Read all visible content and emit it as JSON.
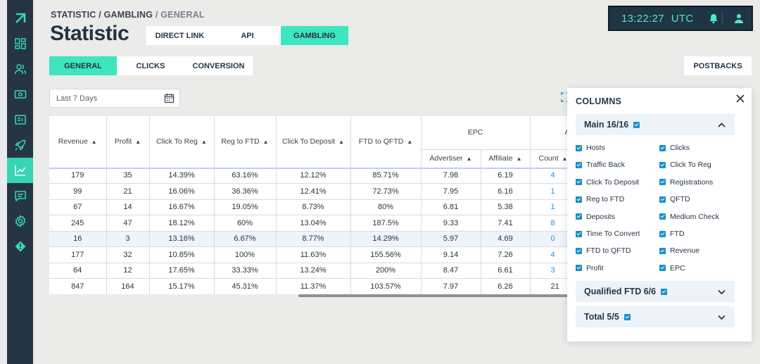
{
  "sidebar": {
    "items": [
      {
        "icon": "logo-arrow-icon",
        "active": false
      },
      {
        "icon": "dashboard-icon",
        "active": false
      },
      {
        "icon": "users-icon",
        "active": false
      },
      {
        "icon": "money-icon",
        "active": false
      },
      {
        "icon": "news-icon",
        "active": false
      },
      {
        "icon": "rocket-icon",
        "active": false
      },
      {
        "icon": "statistic-chart-icon",
        "active": true
      },
      {
        "icon": "message-icon",
        "active": false
      },
      {
        "icon": "settings-icon",
        "active": false
      },
      {
        "icon": "alert-icon",
        "active": false
      }
    ],
    "accent": "#36d6b4",
    "background": "#253546"
  },
  "breadcrumb": {
    "part1": "STATISTIC",
    "sep1": " / ",
    "part2": "GAMBLING",
    "sep2": " / ",
    "part3": "GENERAL"
  },
  "page_title": "Statistic",
  "top_tabs": [
    "DIRECT LINK",
    "API",
    "GAMBLING"
  ],
  "top_tabs_active": "GAMBLING",
  "clock": {
    "time": "13:22:27",
    "zone": "UTC"
  },
  "sub_tabs": [
    "GENERAL",
    "CLICKS",
    "CONVERSION"
  ],
  "sub_tabs_active": "GENERAL",
  "postbacks_label": "POSTBACKS",
  "date_filter": {
    "value": "Last 7 Days"
  },
  "table": {
    "headers": [
      "Revenue",
      "Profit",
      "Click To Reg",
      "Reg to FTD",
      "Click To Deposit",
      "FTD to QFTD"
    ],
    "epc_group": "EPC",
    "epc_sub": [
      "Advertiser",
      "Affiliate"
    ],
    "next_group_partial": "A",
    "next_sub": [
      "Count"
    ],
    "rows": [
      [
        "179",
        "35",
        "14.39%",
        "63.16%",
        "12.12%",
        "85.71%",
        "7.98",
        "6.19",
        "4"
      ],
      [
        "99",
        "21",
        "16.06%",
        "36.36%",
        "12.41%",
        "72.73%",
        "7.95",
        "6.16",
        "1"
      ],
      [
        "67",
        "14",
        "16.67%",
        "19.05%",
        "8.73%",
        "80%",
        "6.81",
        "5.38",
        "1"
      ],
      [
        "245",
        "47",
        "18.12%",
        "60%",
        "13.04%",
        "187.5%",
        "9.33",
        "7.41",
        "8"
      ],
      [
        "16",
        "3",
        "13.16%",
        "6.67%",
        "8.77%",
        "14.29%",
        "5.97",
        "4.69",
        "0"
      ],
      [
        "177",
        "32",
        "10.85%",
        "100%",
        "11.63%",
        "155.56%",
        "9.14",
        "7.26",
        "4"
      ],
      [
        "64",
        "12",
        "17.65%",
        "33.33%",
        "13.24%",
        "200%",
        "8.47",
        "6.61",
        "3"
      ],
      [
        "847",
        "164",
        "15.17%",
        "45.31%",
        "11.37%",
        "103.57%",
        "7.97",
        "6.26",
        "21"
      ]
    ]
  },
  "columns_panel": {
    "title": "COLUMNS",
    "groups": [
      {
        "label": "Main 16/16",
        "expanded": true
      },
      {
        "label": "Qualified FTD 6/6",
        "expanded": false
      },
      {
        "label": "Total 5/5",
        "expanded": false
      }
    ],
    "main_items_left": [
      "Hosts",
      "Traffic Back",
      "Click To Deposit",
      "Reg to FTD",
      "Deposits",
      "Time To Convert",
      "FTD to QFTD",
      "Profit"
    ],
    "main_items_right": [
      "Clicks",
      "Click To Reg",
      "Registrations",
      "QFTD",
      "Medium Check",
      "FTD",
      "Revenue",
      "EPC"
    ]
  }
}
